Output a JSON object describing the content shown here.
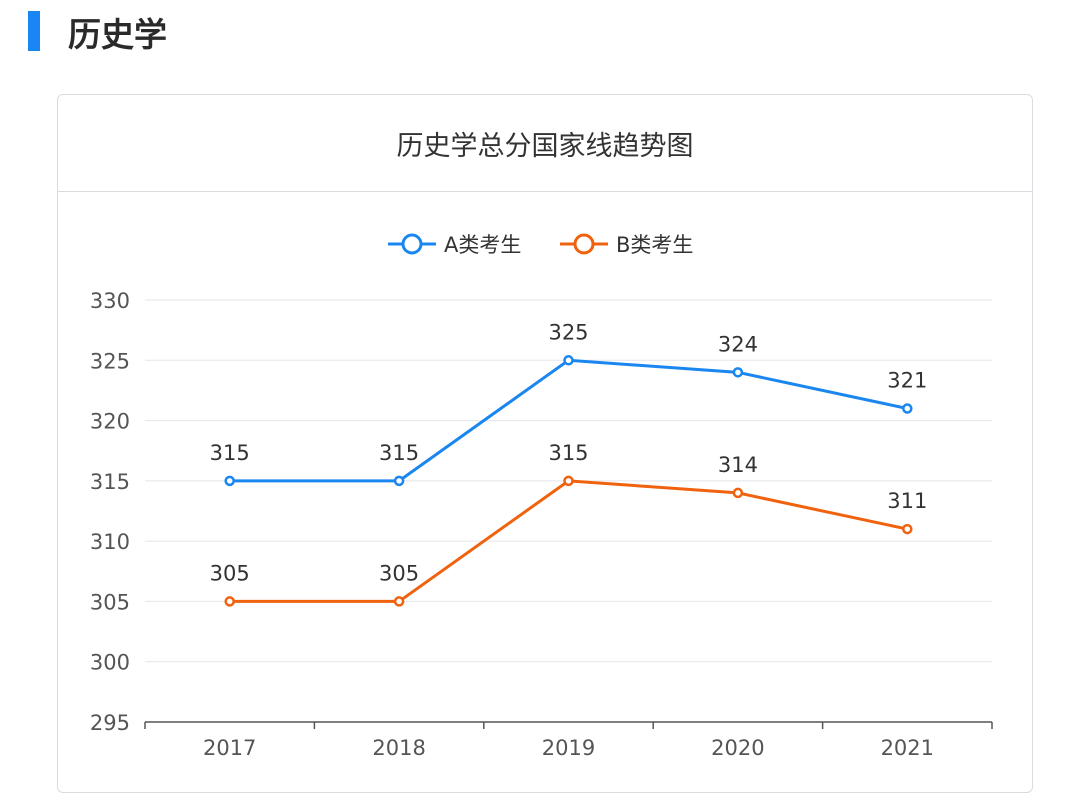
{
  "section": {
    "title": "历史学"
  },
  "chart_data": {
    "type": "line",
    "title": "历史学总分国家线趋势图",
    "categories": [
      "2017",
      "2018",
      "2019",
      "2020",
      "2021"
    ],
    "series": [
      {
        "name": "A类考生",
        "color": "#1a86f0",
        "values": [
          315,
          315,
          325,
          324,
          321
        ]
      },
      {
        "name": "B类考生",
        "color": "#f0620d",
        "values": [
          305,
          305,
          315,
          314,
          311
        ]
      }
    ],
    "ylim": [
      295,
      330
    ],
    "yticks": [
      295,
      300,
      305,
      310,
      315,
      320,
      325,
      330
    ],
    "grid": true,
    "legend": "top-center",
    "data_labels": true
  }
}
